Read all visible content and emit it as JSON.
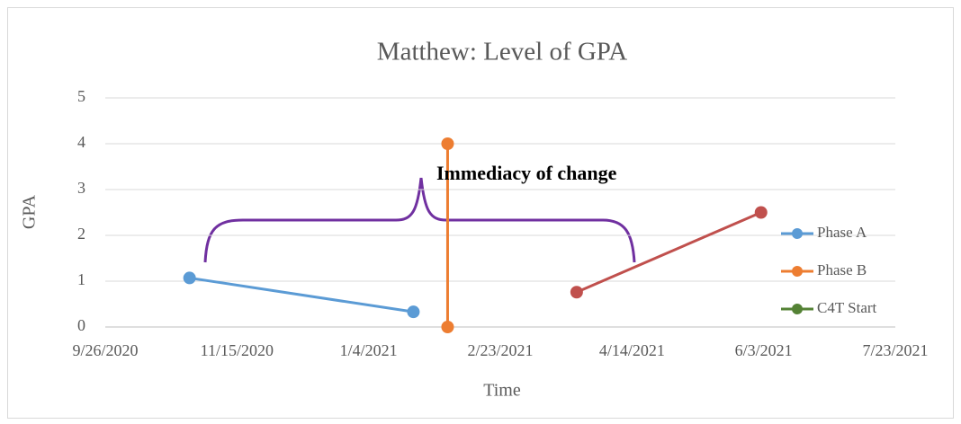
{
  "chart_data": {
    "type": "line",
    "title": "Matthew: Level of  GPA",
    "x_label": "Time",
    "y_label": "GPA",
    "annotation": "Immediacy of change",
    "xlim": [
      "2020-09-26",
      "2021-07-23"
    ],
    "xticks": [
      {
        "value": "2020-09-26",
        "label": "9/26/2020"
      },
      {
        "value": "2020-11-15",
        "label": "11/15/2020"
      },
      {
        "value": "2021-01-04",
        "label": "1/4/2021"
      },
      {
        "value": "2021-02-23",
        "label": "2/23/2021"
      },
      {
        "value": "2021-04-14",
        "label": "4/14/2021"
      },
      {
        "value": "2021-06-03",
        "label": "6/3/2021"
      },
      {
        "value": "2021-07-23",
        "label": "7/23/2021"
      }
    ],
    "ylim": [
      0,
      5
    ],
    "yticks": [
      0,
      1,
      2,
      3,
      4,
      5
    ],
    "grid": true,
    "legend": "right",
    "series": [
      {
        "name": "Phase A",
        "color": "#5b9bd5",
        "x": [
          "2020-10-28",
          "2021-01-21"
        ],
        "values": [
          1.07,
          0.33
        ]
      },
      {
        "name": "Phase B",
        "color": "#ed7d31",
        "x": [
          "2021-02-03",
          "2021-02-03"
        ],
        "values": [
          4,
          0
        ]
      },
      {
        "name": "C4T Start",
        "color": "#548235",
        "x": [],
        "values": []
      },
      {
        "color": "#c0504d",
        "x": [
          "2021-03-24",
          "2021-06-02"
        ],
        "values": [
          0.76,
          2.5
        ]
      }
    ]
  }
}
